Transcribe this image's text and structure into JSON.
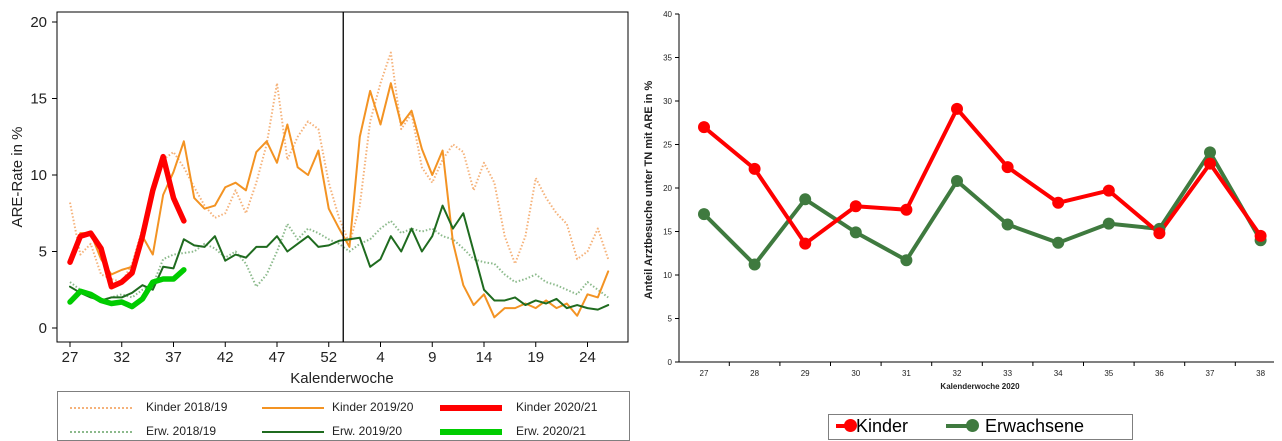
{
  "chart_data": [
    {
      "type": "line",
      "title": "",
      "xlabel": "Kalenderwoche",
      "ylabel": "ARE-Rate in %",
      "ylim": [
        0,
        20
      ],
      "ytick_labels": [
        "0",
        "5",
        "10",
        "15",
        "20"
      ],
      "xtick_labels": [
        "27",
        "32",
        "37",
        "42",
        "47",
        "52",
        "4",
        "9",
        "14",
        "19",
        "24"
      ],
      "week_sequence": [
        27,
        28,
        29,
        30,
        31,
        32,
        33,
        34,
        35,
        36,
        37,
        38,
        39,
        40,
        41,
        42,
        43,
        44,
        45,
        46,
        47,
        48,
        49,
        50,
        51,
        52,
        53,
        1,
        2,
        3,
        4,
        5,
        6,
        7,
        8,
        9,
        10,
        11,
        12,
        13,
        14,
        15,
        16,
        17,
        18,
        19,
        20,
        21,
        22,
        23,
        24,
        25,
        26
      ],
      "year_change_marker": "after week 53",
      "series": [
        {
          "name": "Kinder 2018/19",
          "color": "#f5b27a",
          "style": "dotted",
          "values": [
            8.2,
            4.8,
            5.5,
            3.5,
            3.2,
            3.0,
            4.2,
            6.5,
            9.0,
            11.0,
            11.5,
            10.5,
            9.2,
            8.0,
            7.2,
            7.5,
            9.0,
            7.5,
            9.5,
            12.0,
            16.0,
            11.0,
            12.5,
            13.5,
            13.0,
            9.5,
            7.2,
            5.5,
            8.0,
            13.5,
            16.0,
            18.0,
            13.0,
            14.0,
            10.5,
            9.5,
            11.0,
            12.0,
            11.5,
            9.0,
            10.8,
            9.5,
            6.0,
            4.2,
            6.0,
            9.8,
            8.5,
            7.5,
            6.8,
            4.5,
            5.0,
            6.5,
            4.5
          ]
        },
        {
          "name": "Kinder 2019/20",
          "color": "#f39323",
          "style": "solid",
          "values": [
            4.3,
            6.2,
            6.2,
            4.5,
            3.5,
            3.8,
            4.0,
            6.0,
            4.8,
            8.7,
            10.2,
            12.2,
            8.5,
            7.8,
            8.0,
            9.2,
            9.5,
            9.0,
            11.5,
            12.2,
            10.8,
            13.3,
            10.5,
            10.0,
            11.6,
            7.8,
            6.5,
            5.3,
            12.5,
            15.5,
            13.3,
            16.0,
            13.3,
            14.2,
            11.7,
            10.0,
            11.6,
            5.6,
            2.8,
            1.5,
            2.2,
            0.7,
            1.3,
            1.3,
            1.6,
            1.3,
            1.8,
            1.3,
            1.6,
            0.8,
            2.2,
            2.0,
            3.7
          ]
        },
        {
          "name": "Kinder 2020/21",
          "color": "#ff0000",
          "style": "solid-thick",
          "values": [
            4.3,
            6.0,
            6.2,
            5.2,
            2.7,
            3.0,
            3.6,
            6.0,
            9.0,
            11.2,
            8.5,
            7.0
          ]
        },
        {
          "name": "Erw. 2018/19",
          "color": "#8cba8c",
          "style": "dotted",
          "values": [
            3.0,
            2.5,
            2.2,
            1.8,
            2.0,
            2.2,
            2.0,
            2.5,
            2.8,
            4.5,
            4.8,
            4.9,
            5.0,
            5.5,
            5.2,
            4.6,
            5.0,
            4.2,
            2.7,
            3.5,
            5.0,
            6.8,
            5.8,
            6.5,
            6.2,
            5.8,
            5.5,
            5.0,
            5.5,
            5.8,
            6.5,
            7.0,
            6.2,
            6.5,
            6.3,
            6.5,
            6.0,
            5.8,
            5.2,
            4.5,
            4.3,
            4.2,
            3.5,
            3.0,
            3.2,
            3.5,
            3.0,
            2.8,
            2.5,
            2.2,
            3.0,
            2.5,
            2.0
          ]
        },
        {
          "name": "Erw. 2019/20",
          "color": "#1f6b1f",
          "style": "solid",
          "values": [
            2.7,
            2.3,
            2.0,
            1.8,
            2.0,
            2.0,
            2.3,
            2.8,
            2.5,
            4.0,
            3.9,
            5.8,
            5.4,
            5.3,
            6.0,
            4.4,
            4.8,
            4.6,
            5.3,
            5.3,
            6.0,
            5.0,
            5.5,
            6.0,
            5.3,
            5.4,
            5.7,
            5.8,
            5.9,
            4.0,
            4.5,
            6.0,
            5.0,
            6.5,
            5.0,
            6.0,
            8.0,
            6.5,
            7.5,
            5.0,
            2.5,
            1.8,
            1.8,
            2.0,
            1.5,
            1.8,
            1.6,
            1.9,
            1.3,
            1.5,
            1.3,
            1.2,
            1.5
          ]
        },
        {
          "name": "Erw. 2020/21",
          "color": "#00cc00",
          "style": "solid-thick",
          "values": [
            1.7,
            2.4,
            2.2,
            1.8,
            1.6,
            1.7,
            1.4,
            1.9,
            3.0,
            3.2,
            3.2,
            3.8
          ]
        }
      ],
      "legend": "bottom"
    },
    {
      "type": "line",
      "title": "",
      "xlabel": "Kalenderwoche 2020",
      "ylabel": "Anteil Arztbesuche unter TN mit ARE in %",
      "ylim": [
        0,
        40
      ],
      "ytick_labels": [
        "0",
        "5",
        "10",
        "15",
        "20",
        "25",
        "30",
        "35",
        "40"
      ],
      "categories": [
        "27",
        "28",
        "29",
        "30",
        "31",
        "32",
        "33",
        "34",
        "35",
        "36",
        "37",
        "38"
      ],
      "series": [
        {
          "name": "Kinder",
          "color": "#ff0000",
          "values": [
            27.0,
            22.2,
            13.6,
            17.9,
            17.5,
            29.1,
            22.4,
            18.3,
            19.7,
            14.8,
            22.8,
            14.5
          ]
        },
        {
          "name": "Erwachsene",
          "color": "#3f7a3f",
          "values": [
            17.0,
            11.2,
            18.7,
            14.9,
            11.7,
            20.8,
            15.8,
            13.7,
            15.9,
            15.3,
            24.1,
            14.0
          ]
        }
      ],
      "legend": "bottom"
    }
  ]
}
